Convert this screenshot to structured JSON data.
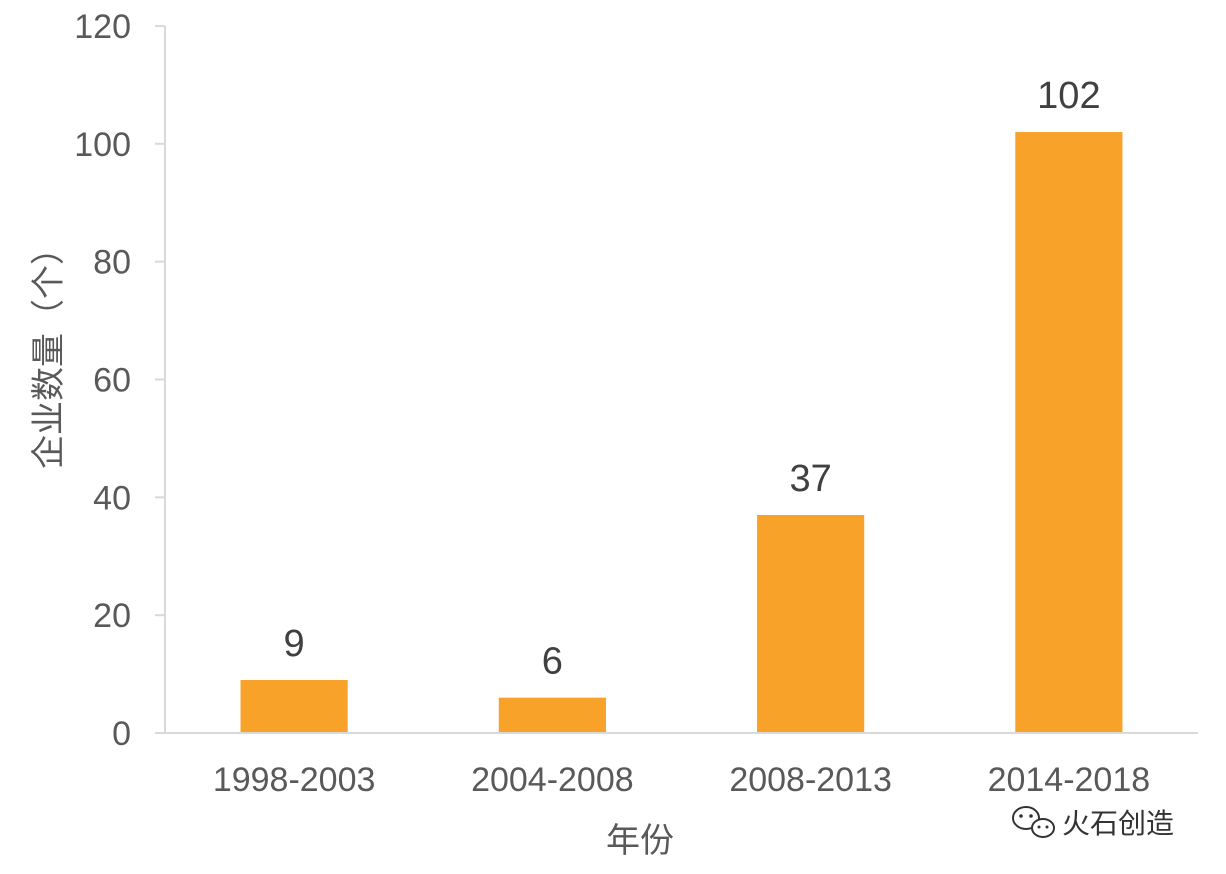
{
  "chart_data": {
    "type": "bar",
    "categories": [
      "1998-2003",
      "2004-2008",
      "2008-2013",
      "2014-2018"
    ],
    "values": [
      9,
      6,
      37,
      102
    ],
    "data_labels": [
      "9",
      "6",
      "37",
      "102"
    ],
    "title": "",
    "xlabel": "年份",
    "ylabel": "企业数量（个）",
    "ylim": [
      0,
      120
    ],
    "yticks": [
      0,
      20,
      40,
      60,
      80,
      100,
      120
    ],
    "grid": false,
    "bar_color": "#F9A22A",
    "axis_color": "#D9D9D9"
  },
  "watermark": {
    "icon": "wechat-icon",
    "text": "火石创造"
  }
}
